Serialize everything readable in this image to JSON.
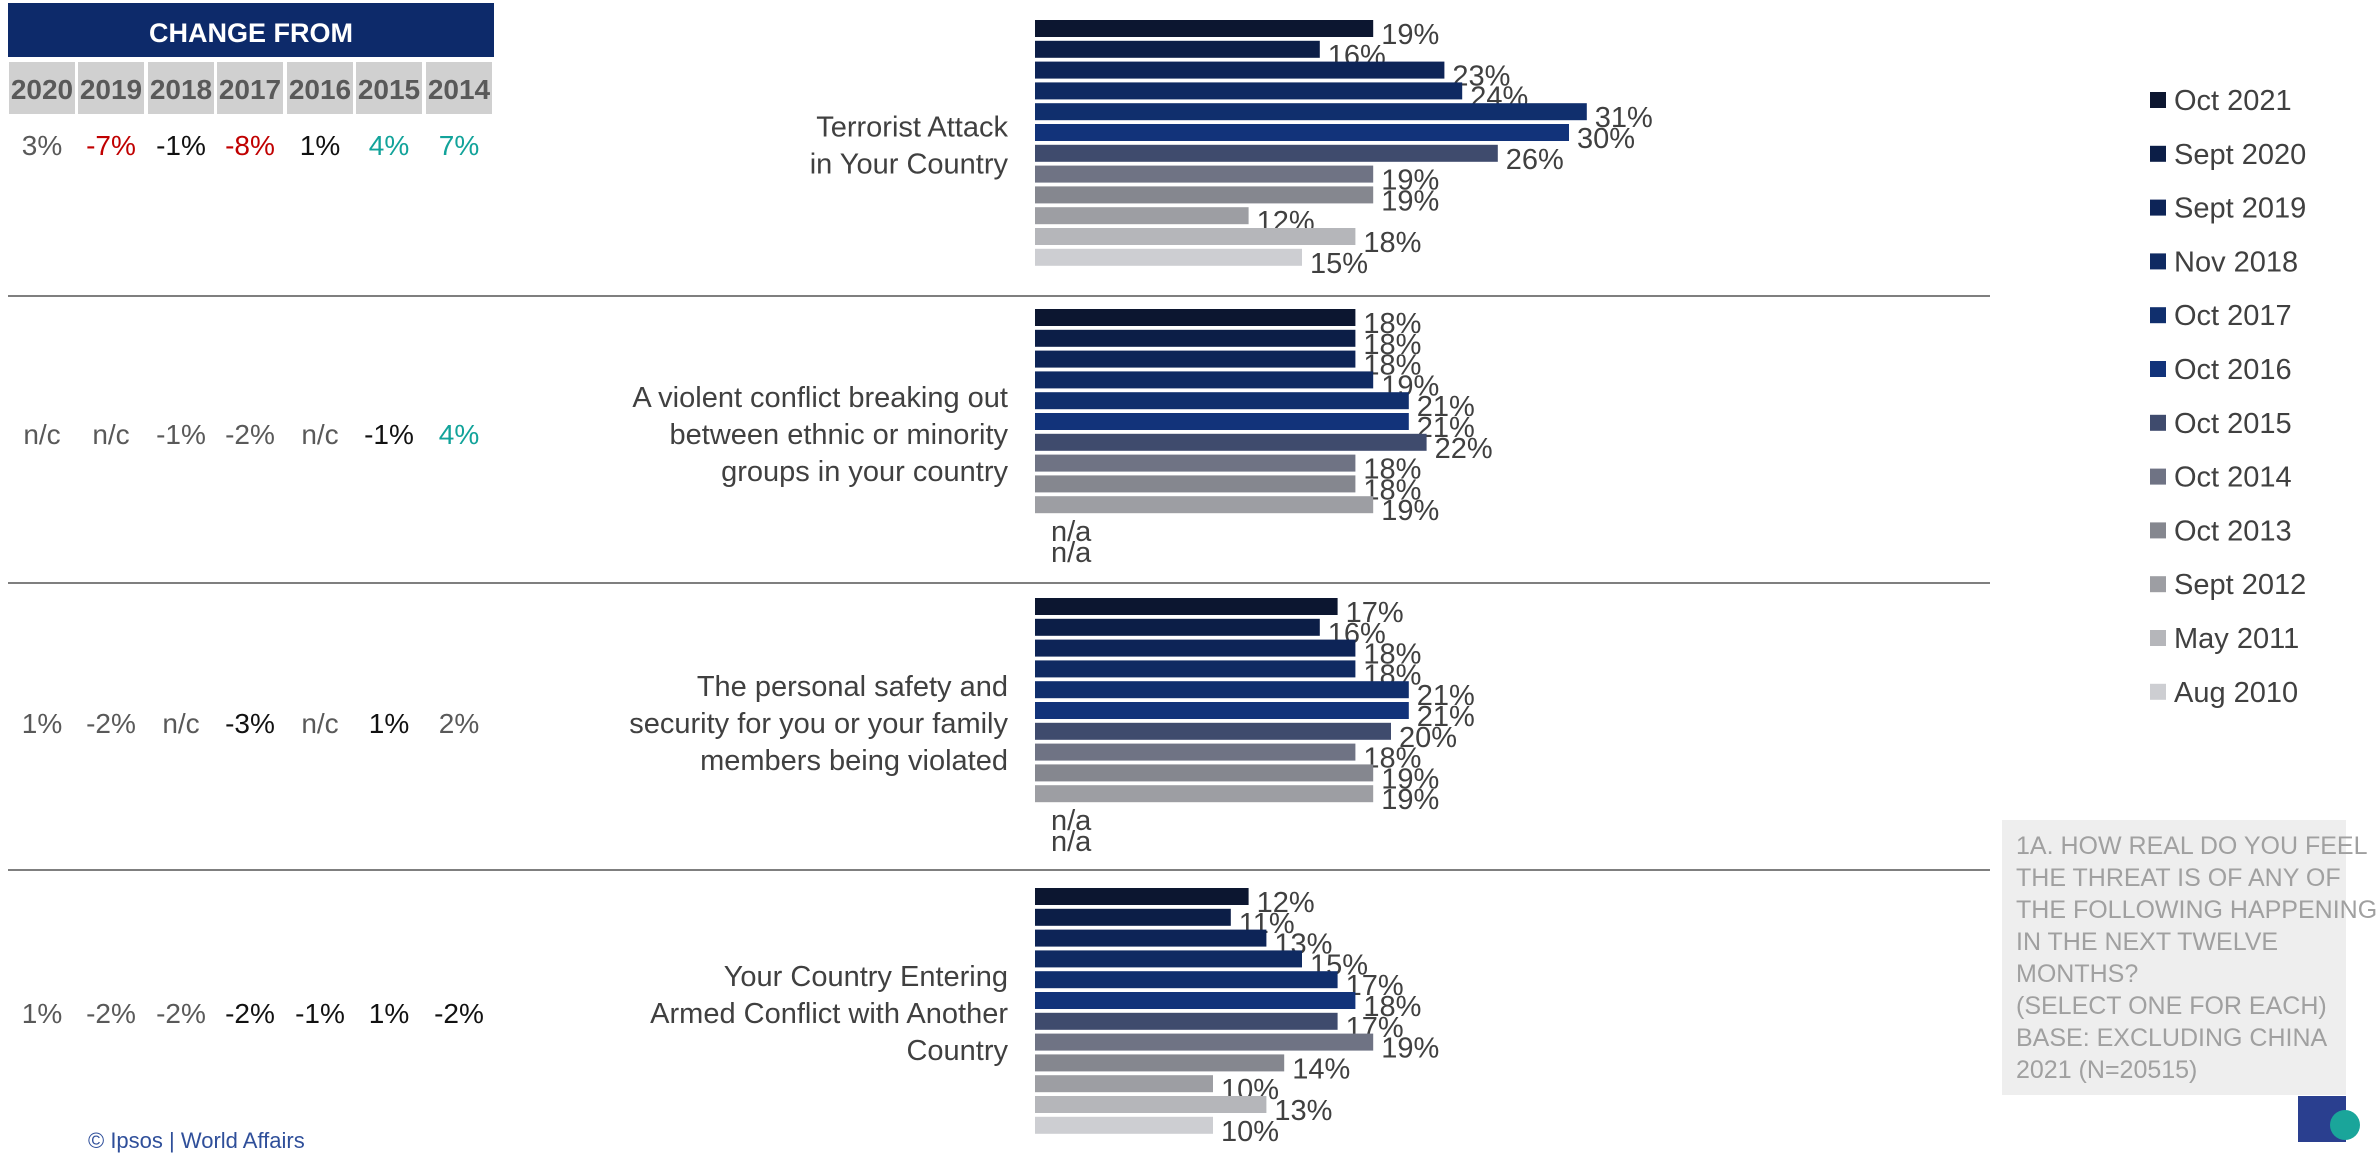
{
  "change_header": {
    "title": "CHANGE FROM",
    "years": [
      "2020",
      "2019",
      "2018",
      "2017",
      "2016",
      "2015",
      "2014"
    ]
  },
  "colors": {
    "header_bg": "#0d2a6a",
    "year_row_bg": "#d0d0d0",
    "negative": "#c00000",
    "positive": "#12a39a",
    "neutral_dark": "#111111",
    "neutral_gray": "#595959"
  },
  "change_rows": [
    [
      {
        "v": "3%",
        "tone": "gray"
      },
      {
        "v": "-7%",
        "tone": "neg"
      },
      {
        "v": "-1%",
        "tone": "dark"
      },
      {
        "v": "-8%",
        "tone": "neg"
      },
      {
        "v": "1%",
        "tone": "dark"
      },
      {
        "v": "4%",
        "tone": "pos"
      },
      {
        "v": "7%",
        "tone": "pos"
      }
    ],
    [
      {
        "v": "n/c",
        "tone": "gray"
      },
      {
        "v": "n/c",
        "tone": "gray"
      },
      {
        "v": "-1%",
        "tone": "gray"
      },
      {
        "v": "-2%",
        "tone": "gray"
      },
      {
        "v": "n/c",
        "tone": "gray"
      },
      {
        "v": "-1%",
        "tone": "dark"
      },
      {
        "v": "4%",
        "tone": "pos"
      }
    ],
    [
      {
        "v": "1%",
        "tone": "gray"
      },
      {
        "v": "-2%",
        "tone": "gray"
      },
      {
        "v": "n/c",
        "tone": "gray"
      },
      {
        "v": "-3%",
        "tone": "dark"
      },
      {
        "v": "n/c",
        "tone": "gray"
      },
      {
        "v": "1%",
        "tone": "dark"
      },
      {
        "v": "2%",
        "tone": "gray"
      }
    ],
    [
      {
        "v": "1%",
        "tone": "gray"
      },
      {
        "v": "-2%",
        "tone": "gray"
      },
      {
        "v": "-2%",
        "tone": "gray"
      },
      {
        "v": "-2%",
        "tone": "dark"
      },
      {
        "v": "-1%",
        "tone": "dark"
      },
      {
        "v": "1%",
        "tone": "dark"
      },
      {
        "v": "-2%",
        "tone": "dark"
      }
    ]
  ],
  "chart_data": {
    "type": "bar",
    "orientation": "horizontal",
    "xlim": [
      0,
      100
    ],
    "grid": false,
    "legend_position": "right",
    "categories": [
      [
        "Terrorist Attack",
        "in Your Country"
      ],
      [
        "A violent conflict breaking out",
        "between ethnic or minority",
        "groups in your country"
      ],
      [
        "The personal safety and",
        "security for you or your family",
        "members being violated"
      ],
      [
        "Your Country Entering",
        "Armed Conflict with Another",
        "Country"
      ]
    ],
    "series": [
      {
        "name": "Oct 2021",
        "color": "#0c1630",
        "values": [
          19,
          18,
          17,
          12
        ],
        "labels": [
          "19%",
          "18%",
          "17%",
          "12%"
        ]
      },
      {
        "name": "Sept 2020",
        "color": "#0c1e47",
        "values": [
          16,
          18,
          16,
          11
        ],
        "labels": [
          "16%",
          "18%",
          "16%",
          "11%"
        ]
      },
      {
        "name": "Sept 2019",
        "color": "#0d2457",
        "values": [
          23,
          18,
          18,
          13
        ],
        "labels": [
          "23%",
          "18%",
          "18%",
          "13%"
        ]
      },
      {
        "name": "Nov 2018",
        "color": "#0f2a62",
        "values": [
          24,
          19,
          18,
          15
        ],
        "labels": [
          "24%",
          "19%",
          "18%",
          "15%"
        ]
      },
      {
        "name": "Oct 2017",
        "color": "#102f6d",
        "values": [
          31,
          21,
          21,
          17
        ],
        "labels": [
          "31%",
          "21%",
          "21%",
          "17%"
        ]
      },
      {
        "name": "Oct 2016",
        "color": "#12337a",
        "values": [
          30,
          21,
          21,
          18
        ],
        "labels": [
          "30%",
          "21%",
          "21%",
          "18%"
        ]
      },
      {
        "name": "Oct 2015",
        "color": "#3f4b6d",
        "values": [
          26,
          22,
          20,
          17
        ],
        "labels": [
          "26%",
          "22%",
          "20%",
          "17%"
        ]
      },
      {
        "name": "Oct 2014",
        "color": "#6f7384",
        "values": [
          19,
          18,
          18,
          19
        ],
        "labels": [
          "19%",
          "18%",
          "18%",
          "19%"
        ]
      },
      {
        "name": "Oct 2013",
        "color": "#85878f",
        "values": [
          19,
          18,
          19,
          14
        ],
        "labels": [
          "19%",
          "18%",
          "19%",
          "14%"
        ]
      },
      {
        "name": "Sept 2012",
        "color": "#9d9ea3",
        "values": [
          12,
          19,
          19,
          10
        ],
        "labels": [
          "12%",
          "19%",
          "19%",
          "10%"
        ]
      },
      {
        "name": "May 2011",
        "color": "#b5b6ba",
        "values": [
          18,
          null,
          null,
          13
        ],
        "labels": [
          "18%",
          "n/a",
          "n/a",
          "13%"
        ]
      },
      {
        "name": "Aug 2010",
        "color": "#cdced2",
        "values": [
          15,
          null,
          null,
          10
        ],
        "labels": [
          "15%",
          "n/a",
          "n/a",
          "10%"
        ]
      }
    ]
  },
  "note_lines": [
    "1A. HOW REAL DO YOU FEEL",
    "THE THREAT IS OF ANY OF",
    "THE FOLLOWING HAPPENING",
    "IN THE NEXT TWELVE",
    "MONTHS?",
    "(SELECT ONE FOR EACH)",
    "BASE: EXCLUDING CHINA",
    "2021 (N=20515)"
  ],
  "footer": {
    "copyright": "© Ipsos | World Affairs"
  }
}
